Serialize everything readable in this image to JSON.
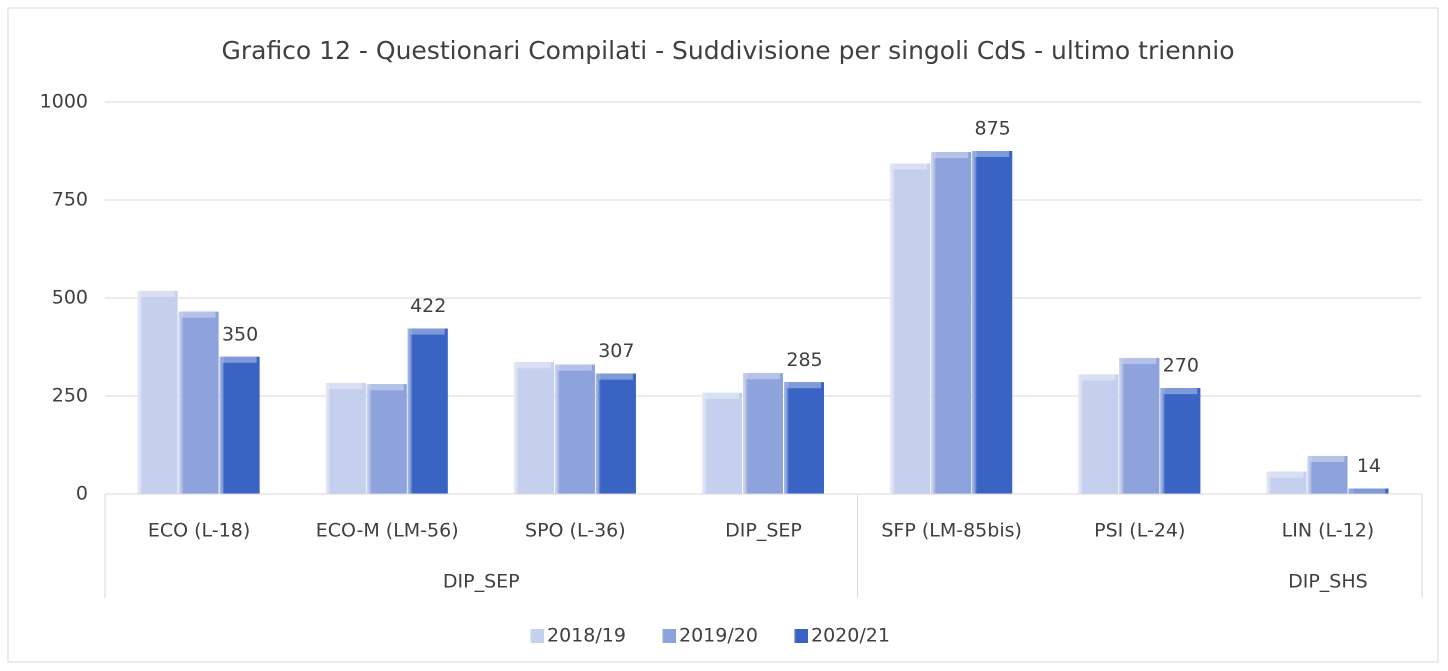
{
  "chart_data": {
    "type": "bar",
    "title": "Grafico 12 - Questionari Compilati - Suddivisione per singoli CdS - ultimo triennio",
    "categories": [
      "ECO (L-18)",
      "ECO-M (LM-56)",
      "SPO (L-36)",
      "DIP_SEP",
      "SFP (LM-85bis)",
      "PSI (L-24)",
      "LIN (L-12)"
    ],
    "groups": [
      {
        "label": "DIP_SEP",
        "count": 4
      },
      {
        "label": "DIP_SHS",
        "count": 3
      }
    ],
    "series": [
      {
        "name": "2018/19",
        "color": "#c5cfee",
        "values": [
          518,
          283,
          336,
          258,
          843,
          305,
          57
        ]
      },
      {
        "name": "2019/20",
        "color": "#8ea2dc",
        "values": [
          465,
          280,
          330,
          308,
          872,
          347,
          97
        ]
      },
      {
        "name": "2020/21",
        "color": "#3a64c4",
        "values": [
          350,
          422,
          307,
          285,
          875,
          270,
          14
        ],
        "show_labels": true
      }
    ],
    "ylim": [
      0,
      1000
    ],
    "yticks": [
      0,
      250,
      500,
      750,
      1000
    ],
    "grid": true,
    "legend": "bottom"
  }
}
